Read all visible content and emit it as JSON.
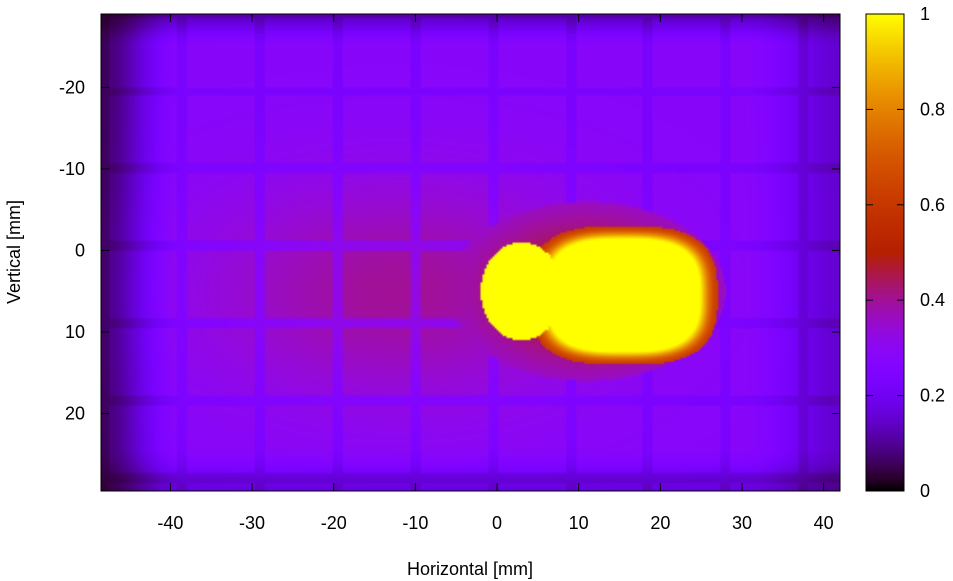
{
  "chart_data": {
    "type": "heatmap",
    "title": "",
    "xlabel": "Horizontal [mm]",
    "ylabel": "Vertical [mm]",
    "xlim": [
      -48.5,
      42
    ],
    "ylim": [
      -29,
      29.5
    ],
    "y_axis_inverted": true,
    "x_ticks": [
      -40,
      -30,
      -20,
      -10,
      0,
      10,
      20,
      30,
      40
    ],
    "y_ticks": [
      -20,
      -10,
      0,
      10,
      20
    ],
    "colorbar": {
      "min": 0,
      "max": 1,
      "ticks": [
        0,
        0.2,
        0.4,
        0.6,
        0.8,
        1
      ],
      "tick_labels": [
        "0",
        "0.2",
        "0.4",
        "0.6",
        "0.8",
        "1"
      ],
      "colormap": "gnuplot-pm3d-default",
      "colors": [
        "#000000",
        "#4b0082",
        "#7f00ff",
        "#b22cab",
        "#d2401f",
        "#f07800",
        "#ffd400",
        "#ffff00"
      ]
    },
    "grid": false,
    "description_of_field": {
      "background_level": 0.28,
      "hot_spot_center": [
        13,
        5
      ],
      "hot_spot_x_range": [
        4,
        27
      ],
      "hot_spot_y_range": [
        -3,
        14
      ],
      "hot_spot_level": 1.0,
      "halo_level": 0.55,
      "grid_tile_pitch_mm": 9.5
    }
  }
}
